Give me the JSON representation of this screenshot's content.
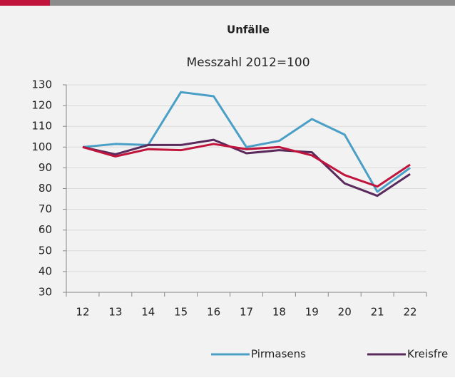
{
  "chart_data": {
    "type": "line",
    "title": "Unfälle",
    "subtitle": "Messzahl 2012=100",
    "categories": [
      "12",
      "13",
      "14",
      "15",
      "16",
      "17",
      "18",
      "19",
      "20",
      "21",
      "22"
    ],
    "series": [
      {
        "name": "Pirmasens",
        "color": "#4a9fc6",
        "values": [
          100,
          101.5,
          101,
          126.5,
          124.5,
          100,
          103,
          113.5,
          106,
          78.5,
          90
        ]
      },
      {
        "name": "Kreisfre",
        "color": "#5a2a5c",
        "values": [
          100,
          96.5,
          101,
          101,
          103.5,
          97,
          98.5,
          97.5,
          82.5,
          76.5,
          87
        ]
      },
      {
        "color": "#c0143c",
        "values": [
          100,
          95.5,
          99,
          98.5,
          101.5,
          99,
          100,
          96,
          86.5,
          81,
          91.5
        ]
      }
    ],
    "ylim": [
      30,
      130
    ],
    "yticks": [
      30,
      40,
      50,
      60,
      70,
      80,
      90,
      100,
      110,
      120,
      130
    ],
    "grid": true
  }
}
